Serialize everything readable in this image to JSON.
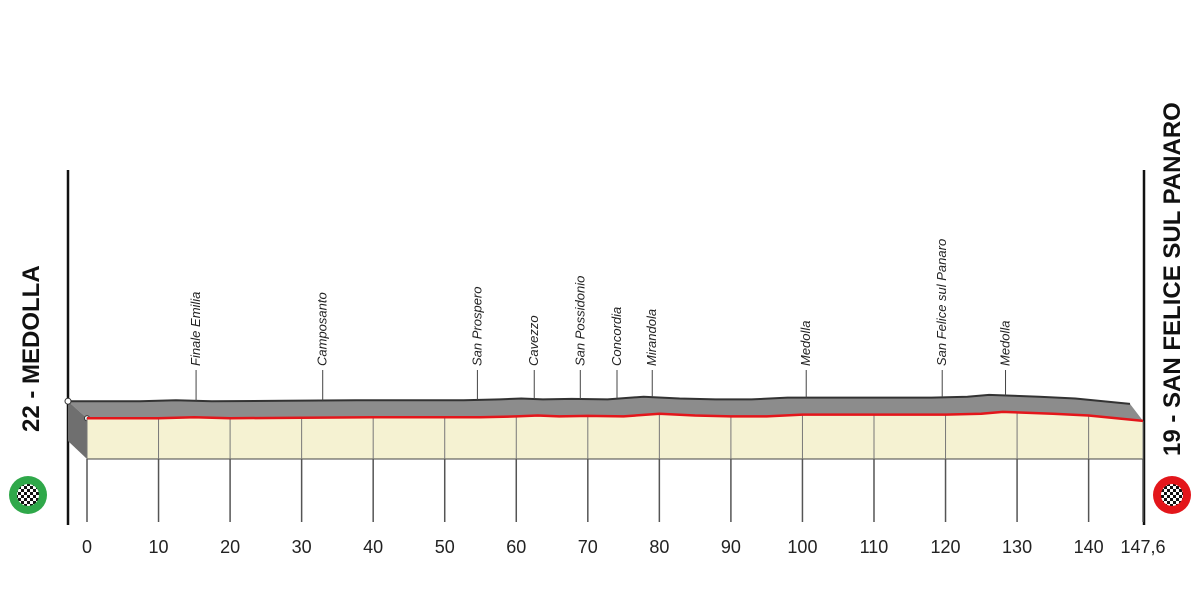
{
  "chart_data": {
    "type": "profile",
    "start": "22 - MEDOLLA",
    "finish": "19 - SAN FELICE SUL PANARO",
    "x": [
      0,
      10,
      15,
      20,
      30,
      40,
      50,
      55,
      60,
      63,
      66,
      70,
      75,
      80,
      85,
      90,
      95,
      100,
      110,
      120,
      125,
      128,
      135,
      140,
      147.6
    ],
    "values": [
      22,
      22,
      23,
      22,
      22.5,
      23,
      23,
      23,
      24,
      25,
      24,
      24.5,
      24,
      27,
      25,
      24,
      24,
      26,
      26,
      26,
      27,
      29,
      27,
      25,
      19
    ],
    "xlim": [
      0,
      147.6
    ],
    "xticks": [
      0,
      10,
      20,
      30,
      40,
      50,
      60,
      70,
      80,
      90,
      100,
      110,
      120,
      130,
      140,
      {
        "value": 147.6,
        "label": "147,6"
      }
    ],
    "ylim": [
      0,
      100
    ],
    "color": "#e3161b",
    "markers": [
      {
        "name": "Finale Emilia",
        "km": 17.8
      },
      {
        "name": "Camposanto",
        "km": 35.4
      },
      {
        "name": "San Prospero",
        "km": 56.9
      },
      {
        "name": "Cavezzo",
        "km": 64.8
      },
      {
        "name": "San Possidonio",
        "km": 71.2
      },
      {
        "name": "Concordia",
        "km": 76.3
      },
      {
        "name": "Mirandola",
        "km": 81.2
      },
      {
        "name": "Medolla",
        "km": 102.6
      },
      {
        "name": "San Felice sul Panaro",
        "km": 121.5
      },
      {
        "name": "Medolla",
        "km": 130.3
      }
    ]
  }
}
